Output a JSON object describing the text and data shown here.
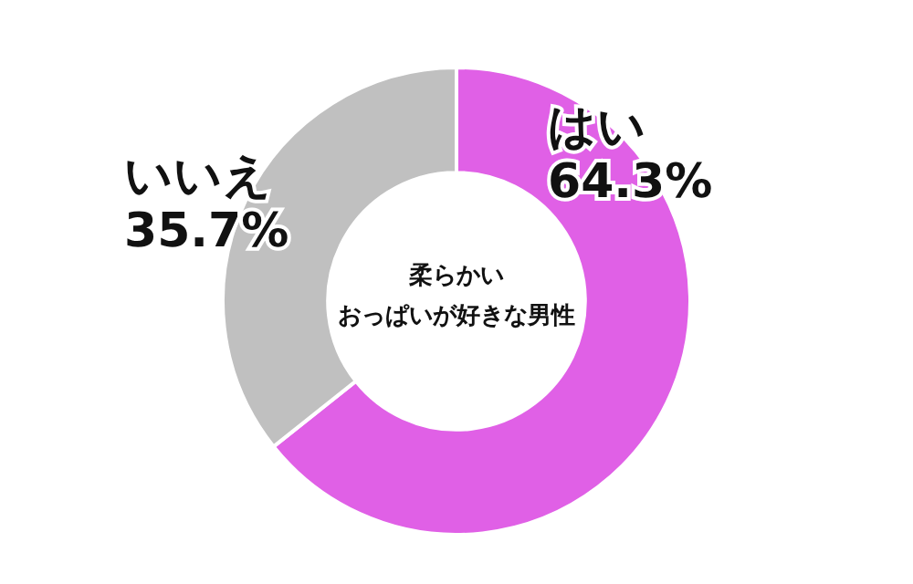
{
  "chart_data": {
    "type": "donut",
    "title": "柔らかい",
    "subtitle": "おっぱいが好きな男性",
    "categories": [
      "はい",
      "いいえ"
    ],
    "values": [
      64.3,
      35.7
    ],
    "colors": [
      "#e060e6",
      "#c0c0c0"
    ],
    "value_labels": [
      "64.3%",
      "35.7%"
    ]
  }
}
